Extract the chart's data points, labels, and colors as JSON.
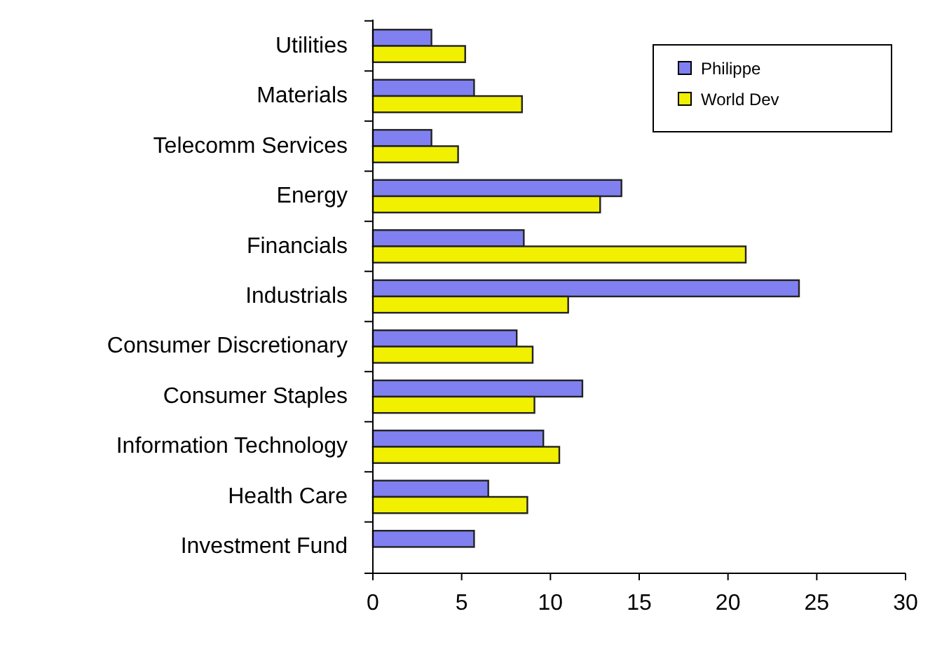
{
  "chart_data": {
    "type": "bar",
    "orientation": "horizontal",
    "categories": [
      "Utilities",
      "Materials",
      "Telecomm Services",
      "Energy",
      "Financials",
      "Industrials",
      "Consumer Discretionary",
      "Consumer Staples",
      "Information Technology",
      "Health Care",
      "Investment Fund"
    ],
    "series": [
      {
        "name": "Philippe",
        "color": "#8080f0",
        "values": [
          3.3,
          5.7,
          3.3,
          14.0,
          8.5,
          24.0,
          8.1,
          11.8,
          9.6,
          6.5,
          5.7
        ]
      },
      {
        "name": "World Dev",
        "color": "#f0f000",
        "values": [
          5.2,
          8.4,
          4.8,
          12.8,
          21.0,
          11.0,
          9.0,
          9.1,
          10.5,
          8.7,
          null
        ]
      }
    ],
    "xlim": [
      0,
      30
    ],
    "xticks": [
      0,
      5,
      10,
      15,
      20,
      25,
      30
    ],
    "grid": false,
    "legend": "top right"
  }
}
